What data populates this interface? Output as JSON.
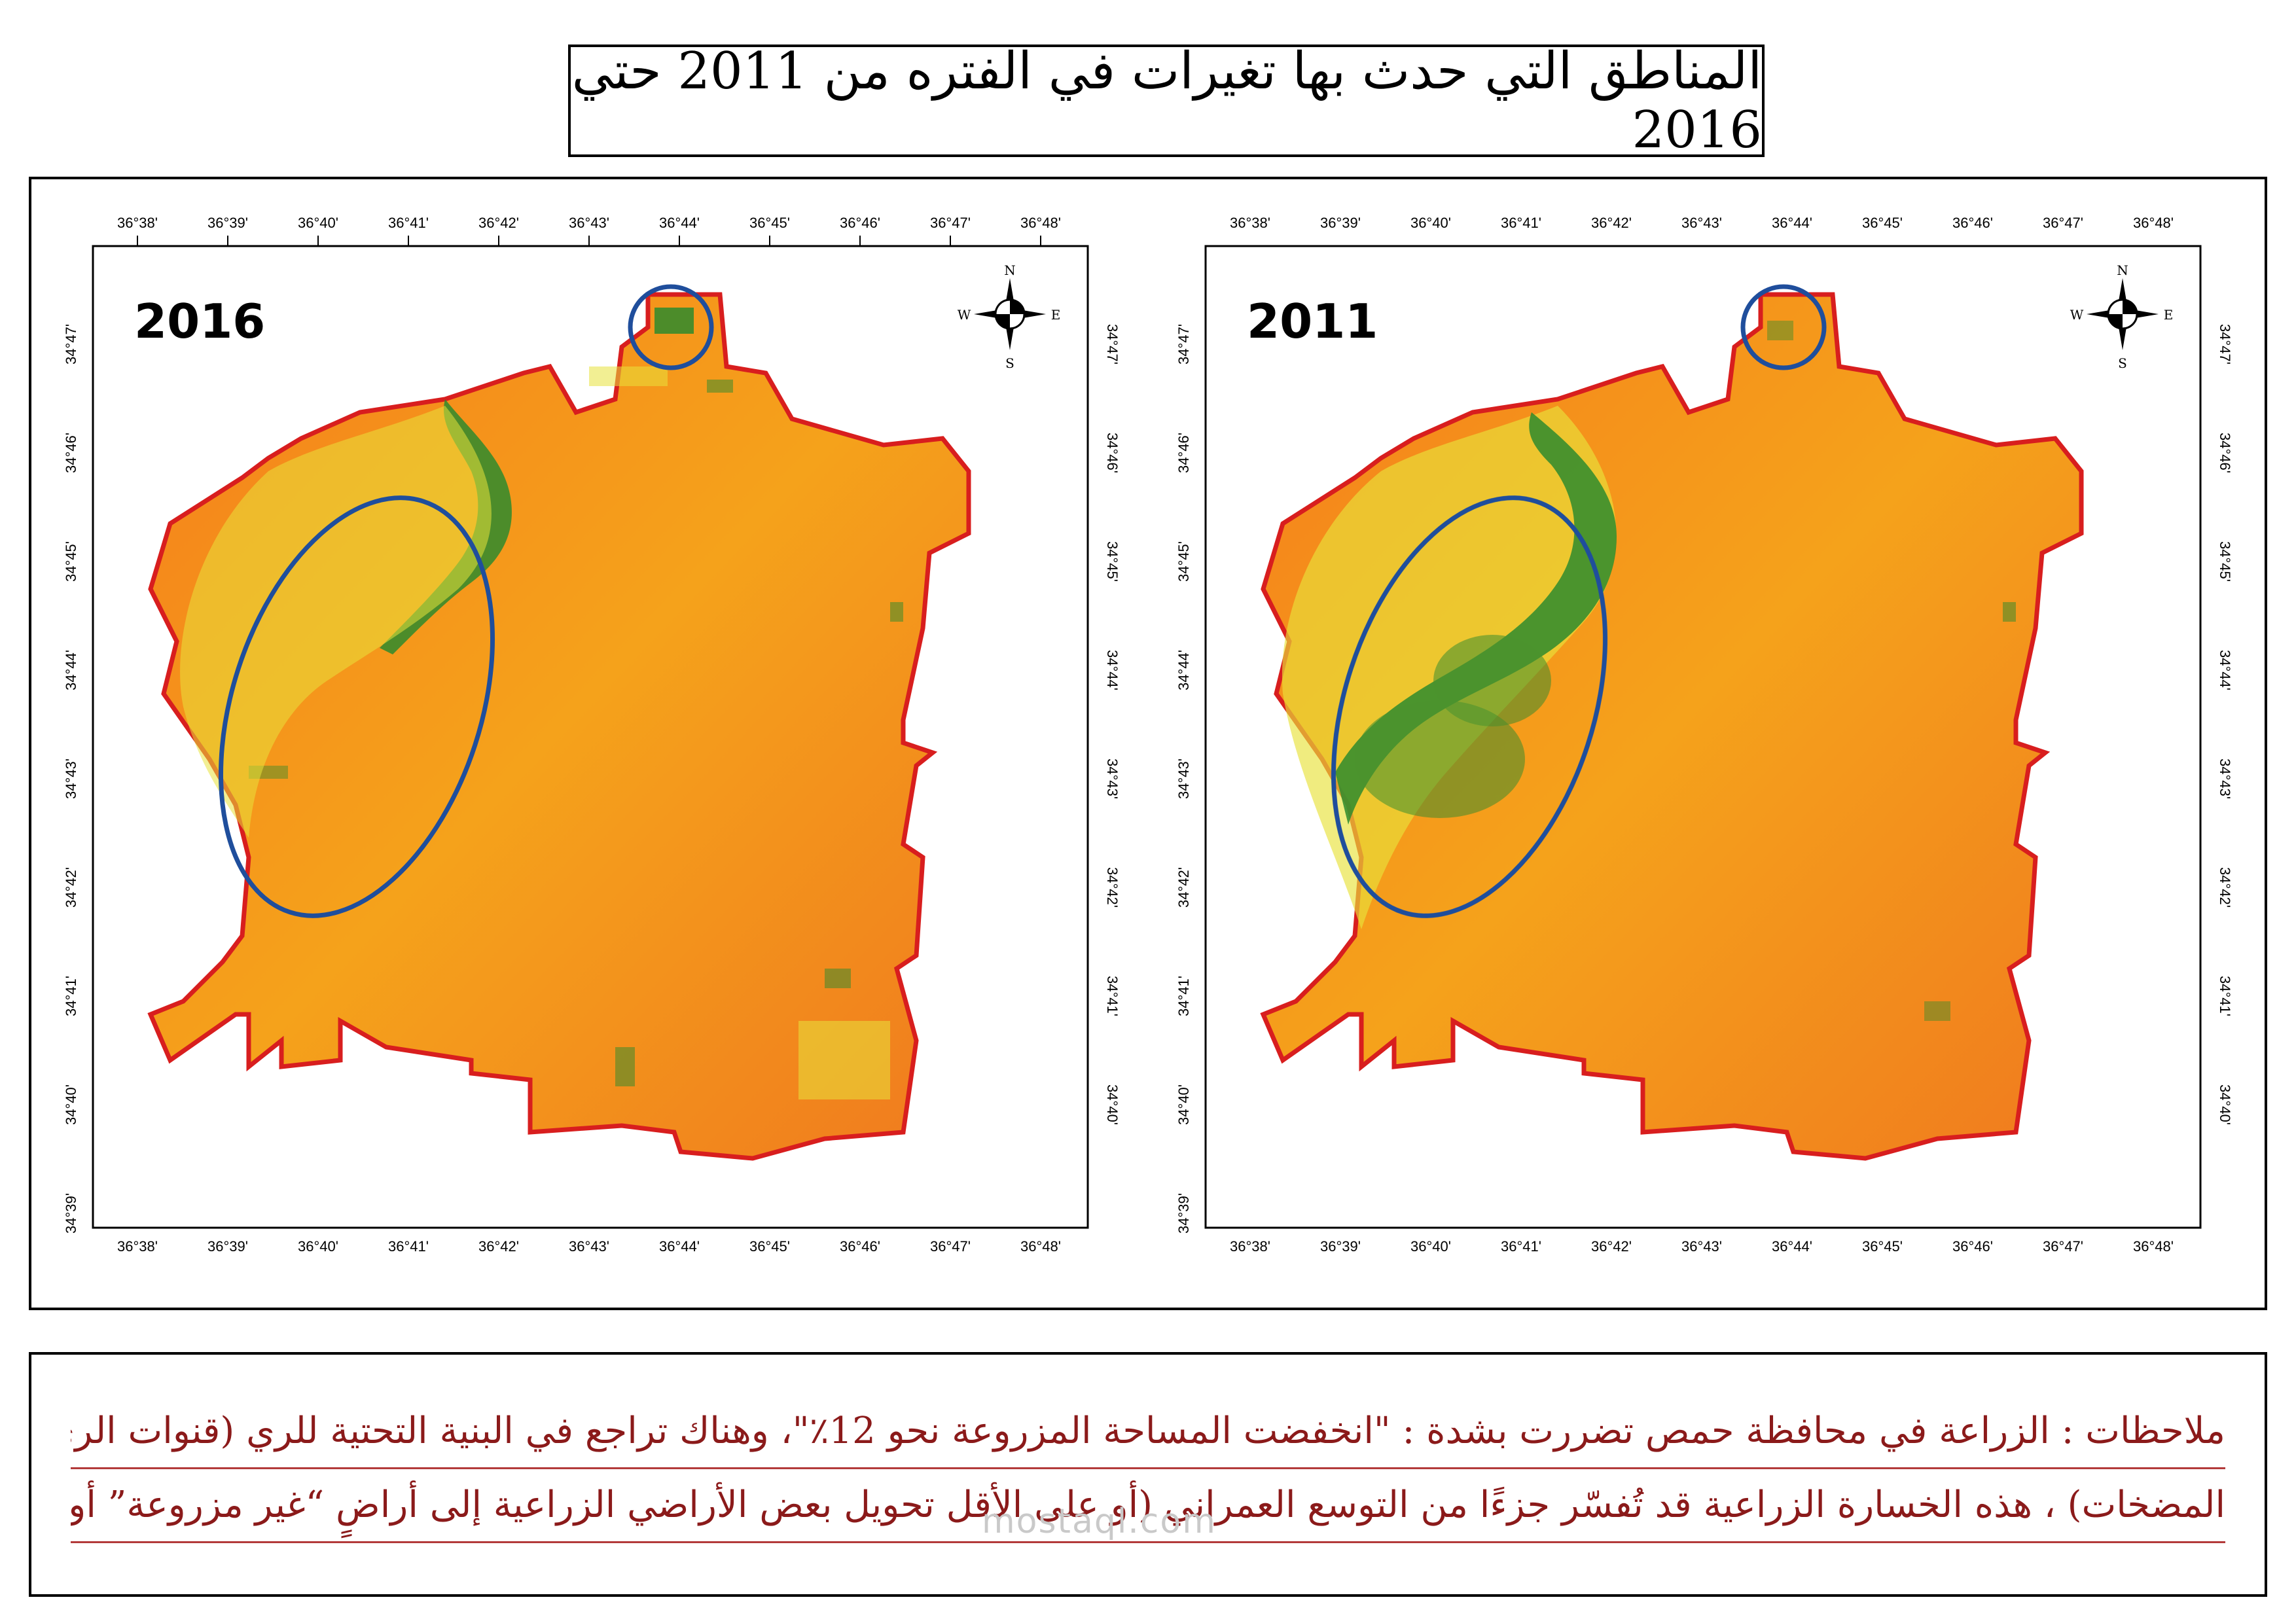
{
  "title": "المناطق التي حدث بها تغيرات في الفتره من 2011 حتي 2016",
  "maps": [
    {
      "year": "2016",
      "lon_ticks": [
        "36°38'",
        "36°39'",
        "36°40'",
        "36°41'",
        "36°42'",
        "36°43'",
        "36°44'",
        "36°45'",
        "36°46'",
        "36°47'",
        "36°48'"
      ],
      "lat_ticks": [
        "34°47'",
        "34°46'",
        "34°45'",
        "34°44'",
        "34°43'",
        "34°42'",
        "34°41'",
        "34°40'",
        "34°39'"
      ],
      "north_arrow": {
        "n": "N",
        "s": "S",
        "e": "E",
        "w": "W"
      }
    },
    {
      "year": "2011",
      "lon_ticks": [
        "36°38'",
        "36°39'",
        "36°40'",
        "36°41'",
        "36°42'",
        "36°43'",
        "36°44'",
        "36°45'",
        "36°46'",
        "36°47'",
        "36°48'"
      ],
      "lat_ticks": [
        "34°47'",
        "34°46'",
        "34°45'",
        "34°44'",
        "34°43'",
        "34°42'",
        "34°41'",
        "34°40'",
        "34°39'"
      ],
      "north_arrow": {
        "n": "N",
        "s": "S",
        "e": "E",
        "w": "W"
      }
    }
  ],
  "notes": {
    "line1": "ملاحظات : الزراعة في محافظة حمص تضررت بشدة : \"انخفضت المساحة المزروعة نحو 12٪\"، وهناك تراجع في البنية التحتية للري (قنوات الري، الآبار،",
    "line2": "المضخات) ، هذه الخسارة الزراعية قد تُفسّر جزءًا من التوسع العمراني (أو على الأقل تحويل بعض الأراضي الزراعية إلى أراضٍ “غير مزروعة” أو قابلة للبناء)"
  },
  "watermark": "mostaql.com",
  "colors": {
    "boundary": "#d81e1e",
    "highlight": "#1f4e9c",
    "urban": "#f5a21b",
    "vegetation": "#2e8b2e"
  }
}
